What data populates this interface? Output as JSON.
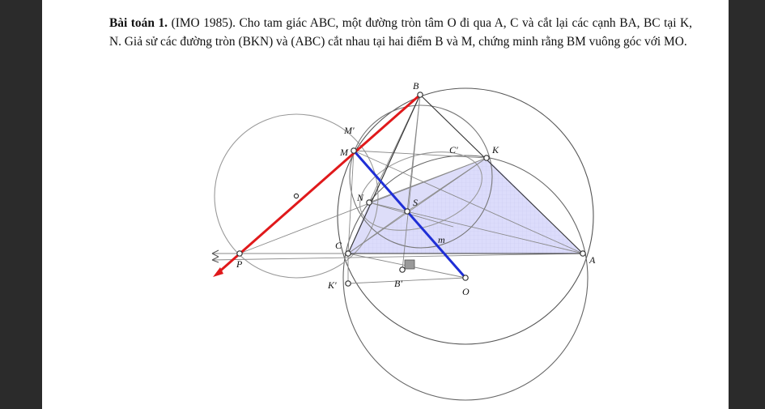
{
  "problem": {
    "heading": "Bài toán 1.",
    "source": "(IMO 1985).",
    "body": "Cho tam giác ABC, một đường tròn tâm O đi qua A, C và cắt lại các cạnh BA, BC tại K, N. Giả sử các đường tròn (BKN) và (ABC) cắt nhau tại hai điểm B và M, chứng minh rằng BM vuông góc với MO."
  },
  "figure": {
    "labels": {
      "B": "B",
      "M_prime": "M'",
      "M": "M",
      "C_prime": "C'",
      "K": "K",
      "N": "N",
      "S": "S",
      "m": "m",
      "C": "C",
      "A": "A",
      "P": "P",
      "K_prime": "K'",
      "B_prime": "B'",
      "O": "O"
    },
    "colors": {
      "red_line": "#e0191b",
      "blue_line": "#1f2fd6",
      "triangle_fill": "#d9d9fb",
      "circle": "#555555",
      "thin_line": "#8a8a8a"
    }
  }
}
